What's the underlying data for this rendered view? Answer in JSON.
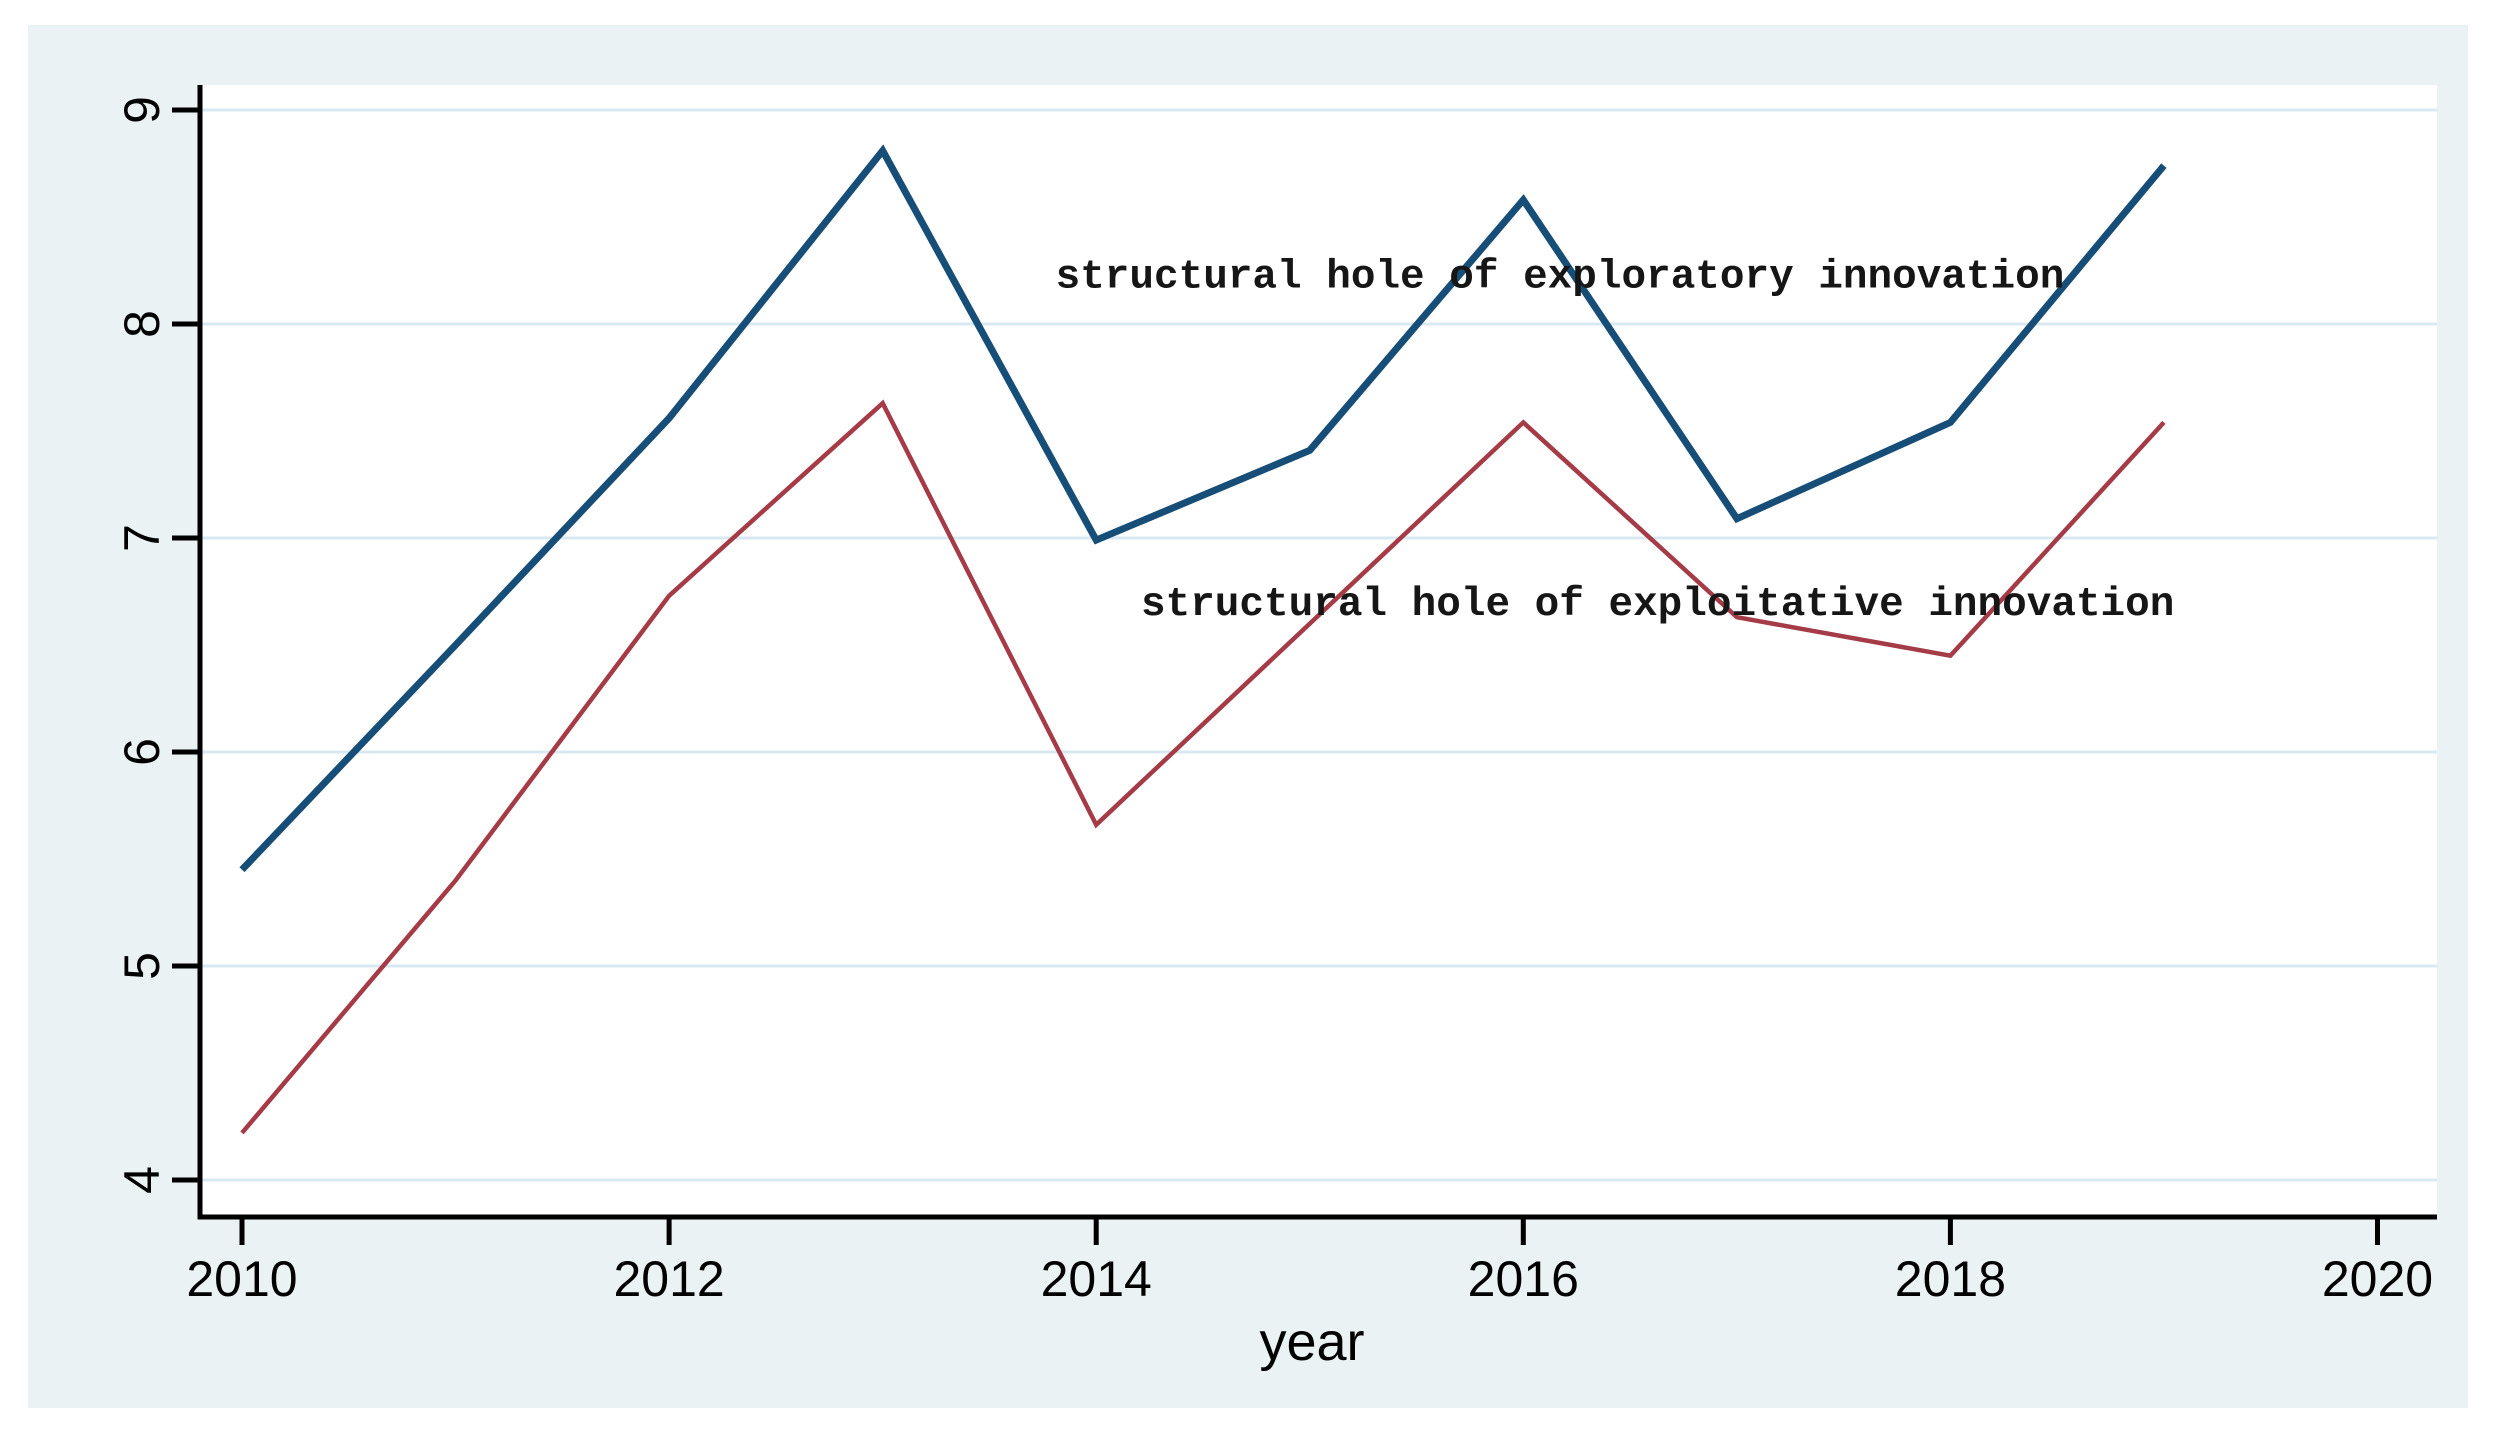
{
  "figure": {
    "canvas_bg": "#eaf2f3",
    "plot_bg": "#ffffff",
    "grid_color": "#d9e9f1",
    "axis_color": "#000000",
    "tick_label_color": "#000000",
    "annotation_color": "#161616"
  },
  "chart_data": {
    "type": "line",
    "title": "",
    "xlabel": "year",
    "ylabel": "",
    "x": [
      2010,
      2011,
      2012,
      2013,
      2014,
      2015,
      2016,
      2017,
      2018,
      2019
    ],
    "x_ticks": [
      2010,
      2012,
      2014,
      2016,
      2018,
      2020
    ],
    "y_ticks": [
      4,
      5,
      6,
      7,
      8,
      9
    ],
    "xlim": [
      2009.8,
      2020.6
    ],
    "ylim": [
      3.83,
      9.12
    ],
    "grid": "horizontal-only",
    "legend_position": "inline-text-annotations",
    "series": [
      {
        "name": "structural hole of exploratory innovation",
        "color": "#174e78",
        "stroke_width": 7,
        "values": [
          5.45,
          6.5,
          7.56,
          8.81,
          6.99,
          7.41,
          8.58,
          7.09,
          7.54,
          8.74
        ]
      },
      {
        "name": "structural hole of exploitative innovation",
        "color": "#a53b46",
        "stroke_width": 4.5,
        "values": [
          4.22,
          5.4,
          6.73,
          7.63,
          5.66,
          6.6,
          7.54,
          6.63,
          6.45,
          7.54
        ]
      }
    ],
    "annotations": [
      {
        "text": "structural hole of exploratory innovation",
        "year": 2013.81,
        "value": 8.24
      },
      {
        "text": "structural hole of exploitative innovation",
        "year": 2014.21,
        "value": 6.71
      }
    ]
  }
}
